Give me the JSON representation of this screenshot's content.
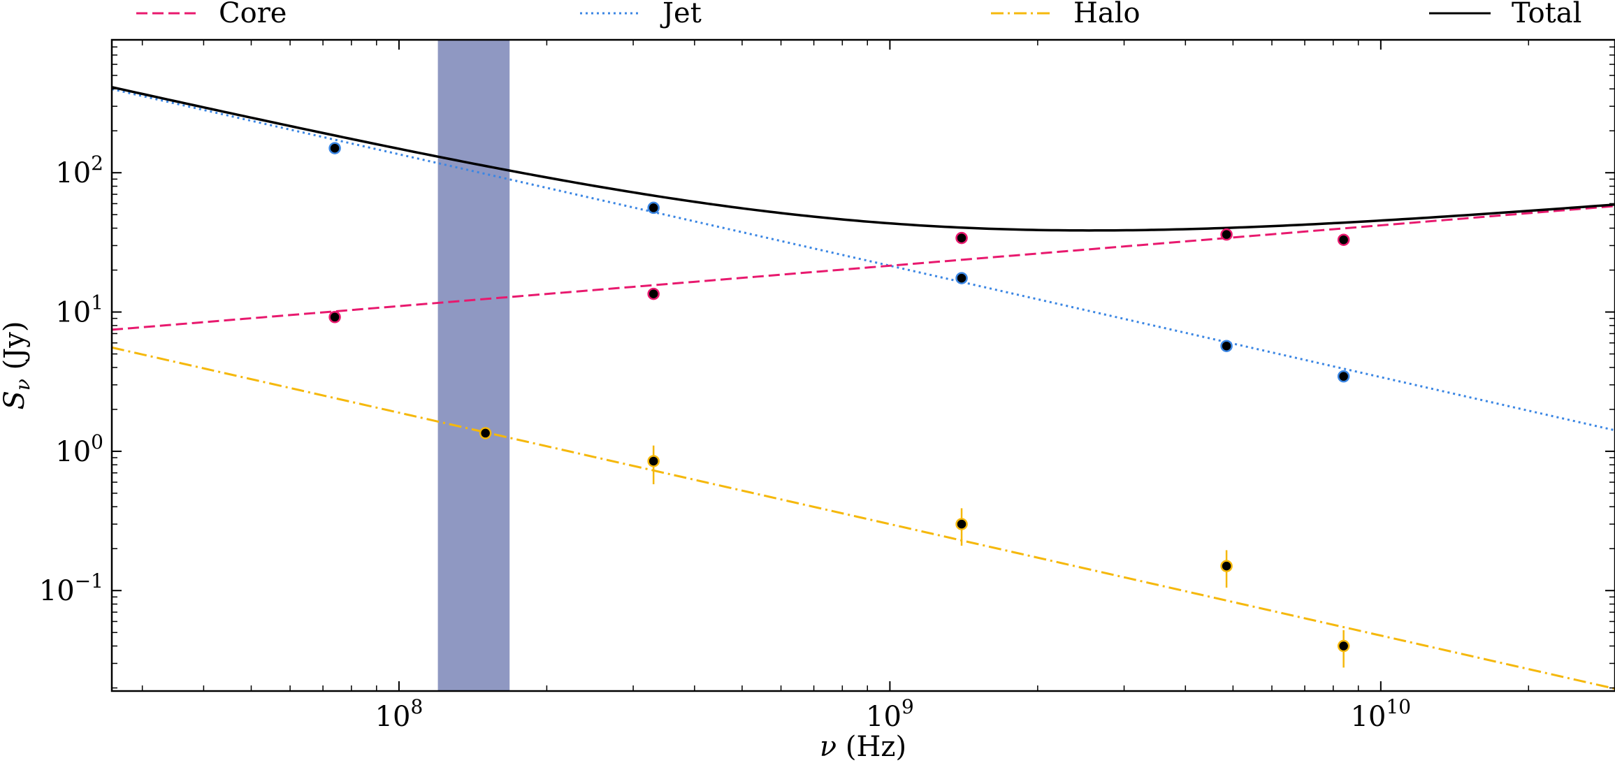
{
  "chart_data": {
    "type": "line",
    "xlabel": "ν (Hz)",
    "ylabel": "Sν (Jy)",
    "xscale": "log",
    "yscale": "log",
    "xlim": [
      26000000,
      30000000000
    ],
    "ylim": [
      0.019,
      900
    ],
    "x_ticks": [
      {
        "value": 100000000,
        "base": "10",
        "exp": "8"
      },
      {
        "value": 1000000000,
        "base": "10",
        "exp": "9"
      },
      {
        "value": 10000000000,
        "base": "10",
        "exp": "10"
      }
    ],
    "y_ticks": [
      {
        "value": 0.1,
        "base": "10",
        "exp": "−1"
      },
      {
        "value": 1,
        "base": "10",
        "exp": "0"
      },
      {
        "value": 10,
        "base": "10",
        "exp": "1"
      },
      {
        "value": 100,
        "base": "10",
        "exp": "2"
      }
    ],
    "shaded_band": {
      "x_start": 120000000,
      "x_end": 168000000,
      "color": "#8f98c2"
    },
    "legend_position": "top, outside plot",
    "series": [
      {
        "name": "Core",
        "color": "#e8196e",
        "style": "dashed",
        "model": {
          "amplitude_at_1GHz": 21.5,
          "spectral_index": 0.29
        },
        "points": [
          {
            "x": 74000000,
            "y": 9.2
          },
          {
            "x": 330000000,
            "y": 13.5
          },
          {
            "x": 1400000000,
            "y": 34
          },
          {
            "x": 4850000000,
            "y": 36
          },
          {
            "x": 8400000000,
            "y": 33
          }
        ]
      },
      {
        "name": "Jet",
        "color": "#3b86e3",
        "style": "dotted",
        "model": {
          "amplitude_at_1GHz": 21.5,
          "spectral_index": -0.8
        },
        "points": [
          {
            "x": 74000000,
            "y": 150
          },
          {
            "x": 330000000,
            "y": 56
          },
          {
            "x": 1400000000,
            "y": 17.5
          },
          {
            "x": 4850000000,
            "y": 5.7
          },
          {
            "x": 8400000000,
            "y": 3.45
          }
        ]
      },
      {
        "name": "Halo",
        "color": "#f5b80c",
        "style": "dash-dot",
        "model": {
          "amplitude_at_1GHz": 0.3,
          "spectral_index": -0.8
        },
        "points": [
          {
            "x": 150000000,
            "y": 1.35,
            "err_lo": 0,
            "err_hi": 0
          },
          {
            "x": 330000000,
            "y": 0.85,
            "err_lo": 0.27,
            "err_hi": 0.25
          },
          {
            "x": 1400000000,
            "y": 0.3,
            "err_lo": 0.09,
            "err_hi": 0.09
          },
          {
            "x": 4850000000,
            "y": 0.15,
            "err_lo": 0.045,
            "err_hi": 0.045
          },
          {
            "x": 8400000000,
            "y": 0.04,
            "err_lo": 0.012,
            "err_hi": 0.012
          }
        ]
      },
      {
        "name": "Total",
        "color": "#000000",
        "style": "solid",
        "model": "sum of Core, Jet and Halo"
      }
    ]
  }
}
